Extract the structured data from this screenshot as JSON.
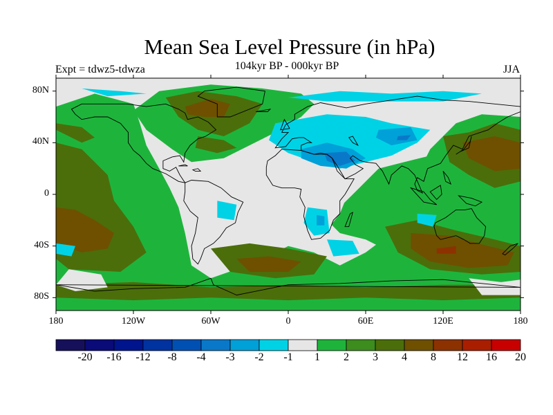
{
  "title": "Mean Sea Level Pressure (in hPa)",
  "subtitle": "104kyr BP - 000kyr BP",
  "experiment": "Expt = tdwz5-tdwza",
  "season": "JJA",
  "lat_labels": [
    "80N",
    "40N",
    "0",
    "40S",
    "80S"
  ],
  "lon_labels": [
    "180",
    "120W",
    "60W",
    "0",
    "60E",
    "120E",
    "180"
  ],
  "colorbar": {
    "labels": [
      "-20",
      "-16",
      "-12",
      "-8",
      "-4",
      "-3",
      "-2",
      "-1",
      "1",
      "2",
      "3",
      "4",
      "8",
      "12",
      "16",
      "20"
    ],
    "colors": [
      "#16105a",
      "#0a0a78",
      "#00148e",
      "#0032a0",
      "#0050b4",
      "#0a78c8",
      "#00a0d8",
      "#00d2e6",
      "#e6e6e6",
      "#1eb43c",
      "#3c8c1e",
      "#4b6e0a",
      "#6e5000",
      "#8c3200",
      "#aa1e00",
      "#c80000"
    ]
  },
  "map": {
    "field_colors": {
      "neutral": "#e6e6e6",
      "pos_1": "#1eb43c",
      "pos_2": "#3c8c1e",
      "pos_3": "#4b6e0a",
      "pos_4": "#6e5000",
      "pos_5": "#8c3200",
      "neg_1": "#00d2e6",
      "neg_2": "#00a0d8",
      "neg_3": "#0a78c8"
    },
    "coastline_color": "#000000"
  }
}
